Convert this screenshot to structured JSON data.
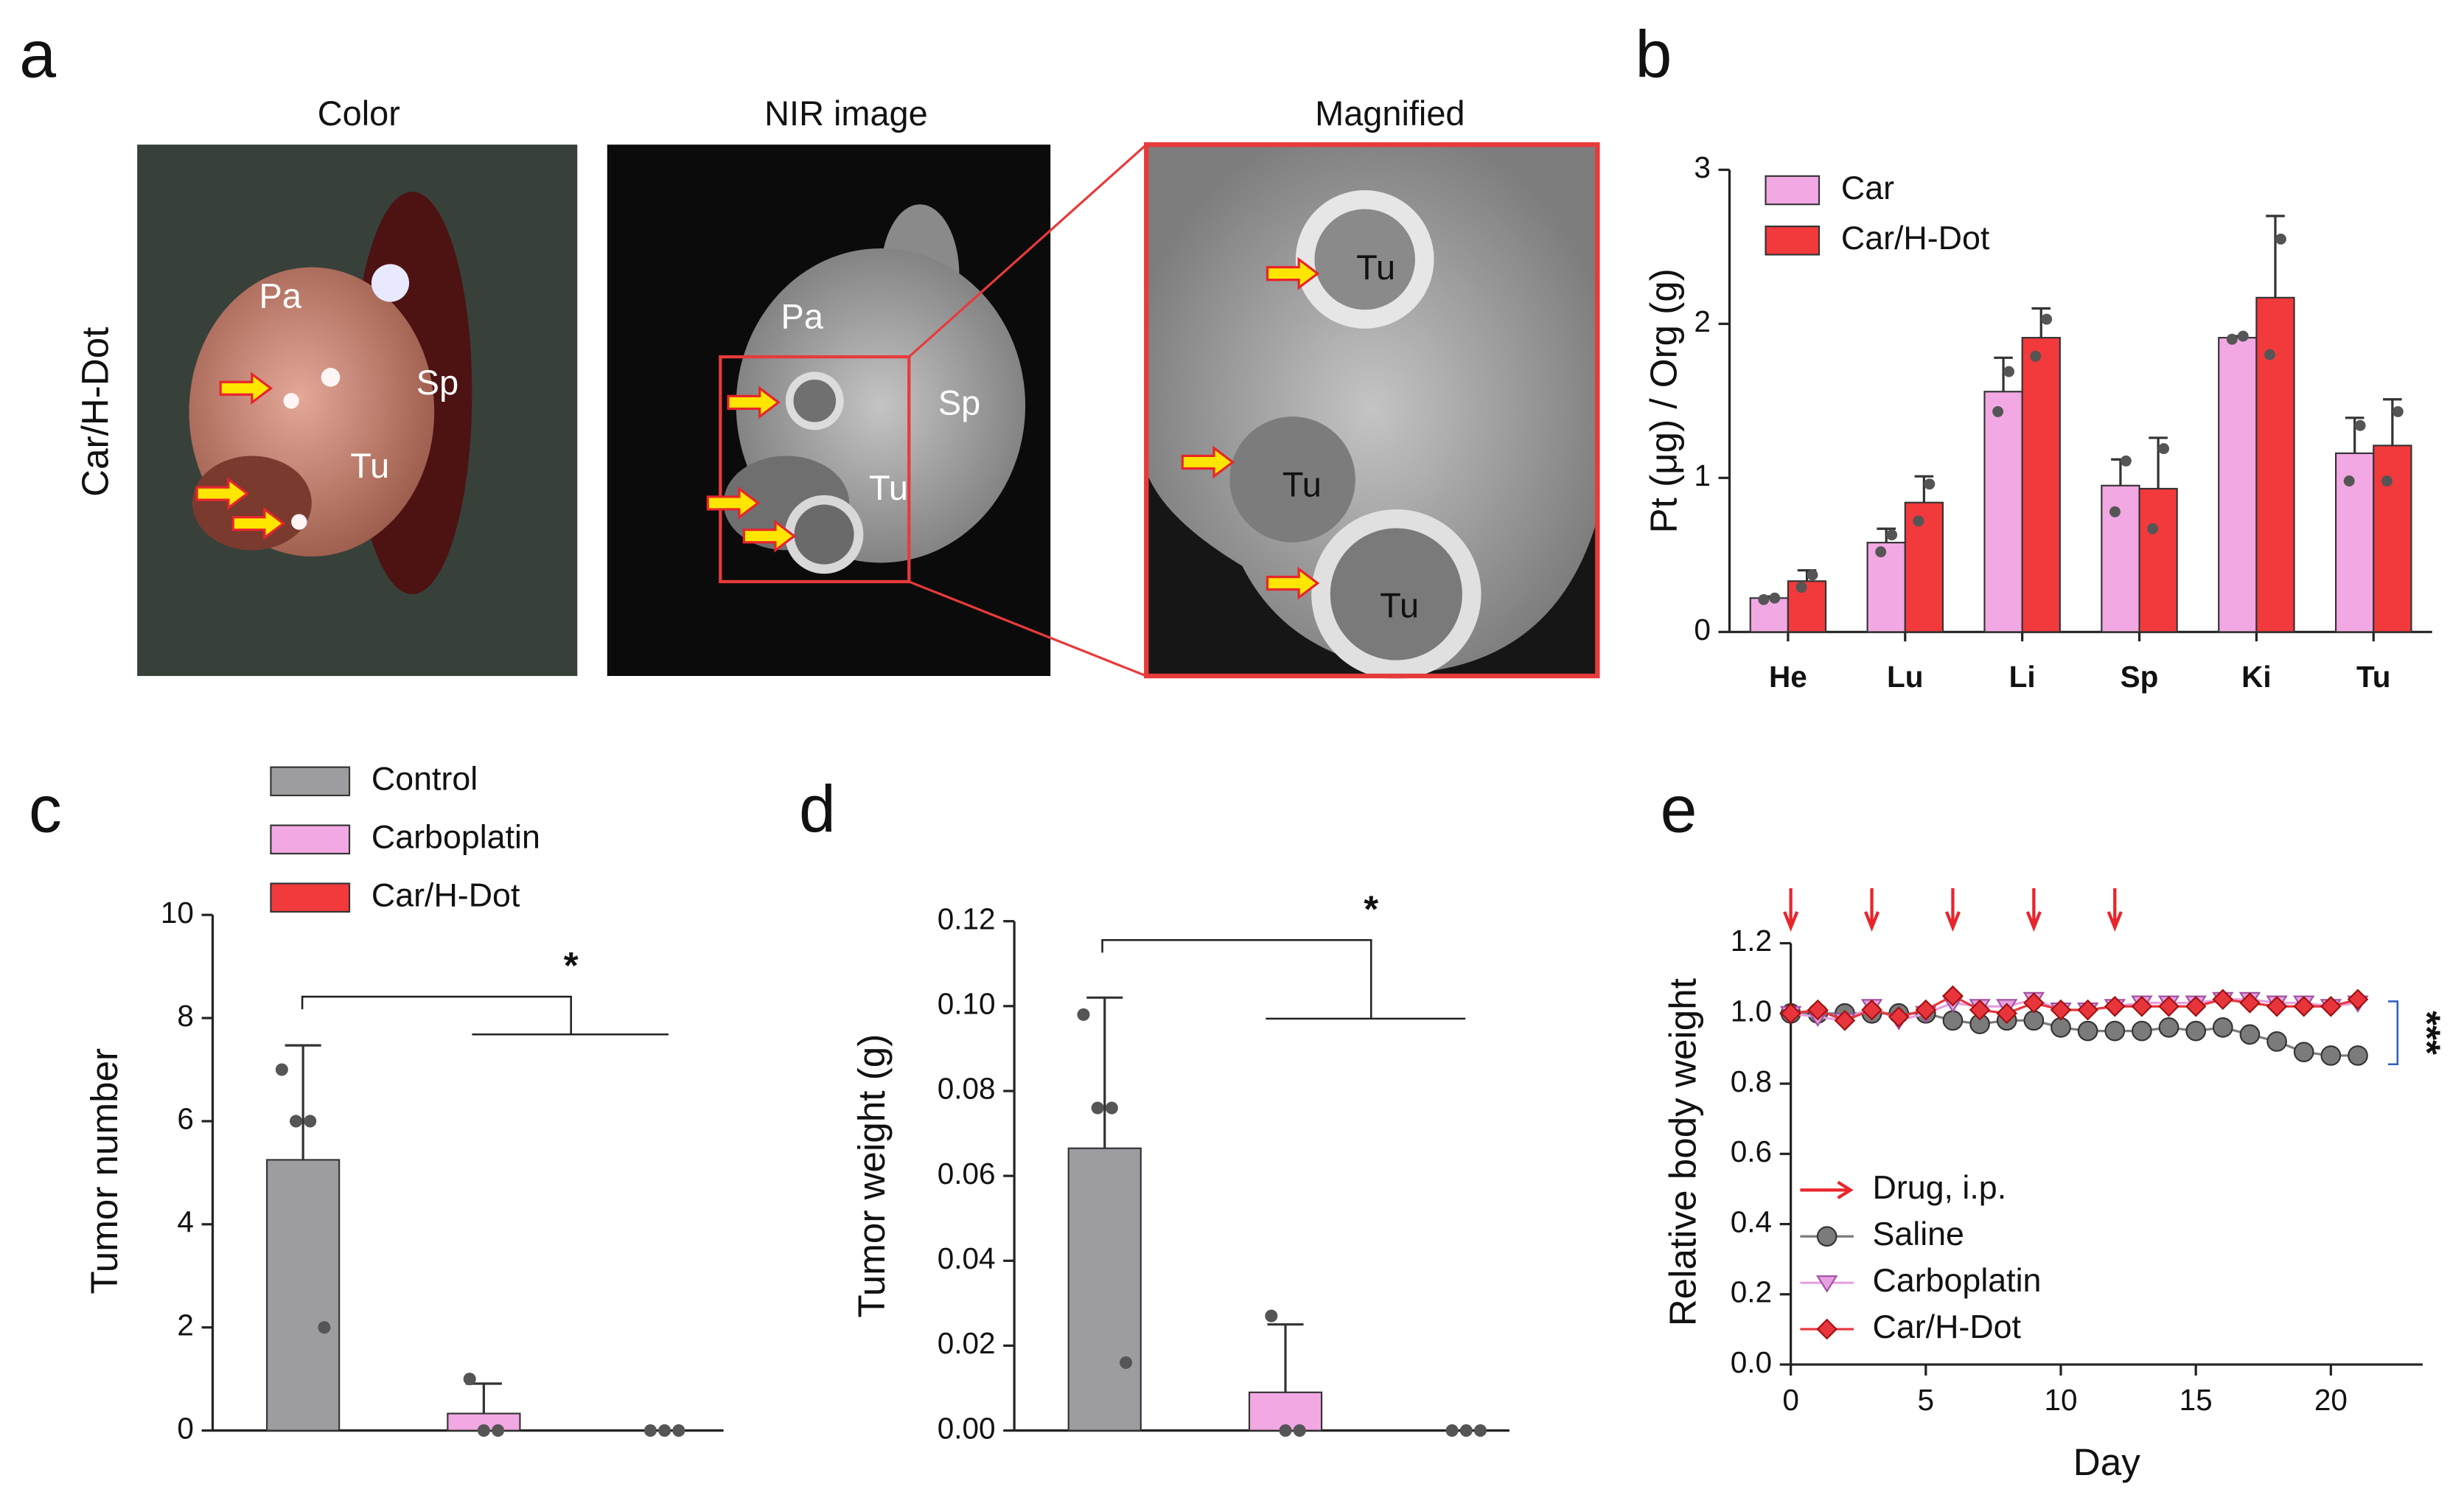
{
  "panel_a": {
    "label": "a",
    "row_label": "Car/H-Dot",
    "images": [
      {
        "title": "Color",
        "labels": [
          "Pa",
          "Sp",
          "Tu"
        ]
      },
      {
        "title": "NIR image",
        "labels": [
          "Pa",
          "Sp",
          "Tu"
        ]
      },
      {
        "title": "Magnified",
        "labels": [
          "Tu",
          "Tu",
          "Tu"
        ]
      }
    ]
  },
  "chart_data": [
    {
      "label": "b",
      "type": "bar",
      "ylabel": "Pt (μg) / Org (g)",
      "categories": [
        "He",
        "Lu",
        "Li",
        "Sp",
        "Ki",
        "Tu"
      ],
      "ylim": [
        0,
        3
      ],
      "yticks": [
        0,
        1,
        2,
        3
      ],
      "legend": "upper left",
      "series": [
        {
          "name": "Car",
          "color": "#f2a8e3",
          "values": [
            0.22,
            0.58,
            1.56,
            0.95,
            1.91,
            1.16
          ],
          "errors": [
            0.01,
            0.09,
            0.22,
            0.17,
            0.01,
            0.23
          ],
          "points": [
            [
              0.21,
              0.22
            ],
            [
              0.52,
              0.63
            ],
            [
              1.43,
              1.69
            ],
            [
              0.78,
              1.11
            ],
            [
              1.9,
              1.92
            ],
            [
              0.98,
              1.34
            ]
          ]
        },
        {
          "name": "Car/H-Dot",
          "color": "#f2393c",
          "values": [
            0.33,
            0.84,
            1.91,
            0.93,
            2.17,
            1.21
          ],
          "errors": [
            0.07,
            0.17,
            0.19,
            0.33,
            0.53,
            0.3
          ],
          "points": [
            [
              0.29,
              0.37
            ],
            [
              0.72,
              0.96
            ],
            [
              1.79,
              2.03
            ],
            [
              0.67,
              1.19
            ],
            [
              1.8,
              2.55
            ],
            [
              0.98,
              1.43
            ]
          ]
        }
      ]
    },
    {
      "label": "c",
      "type": "bar",
      "ylabel": "Tumor number",
      "ylim": [
        0,
        10
      ],
      "yticks": [
        0,
        2,
        4,
        6,
        8,
        10
      ],
      "annotation": "*",
      "legend": "upper left",
      "series": [
        {
          "name": "Control",
          "color": "#9d9ca1",
          "values": [
            5.25
          ],
          "errors": [
            2.22
          ],
          "points": [
            [
              7,
              6,
              6,
              2
            ]
          ]
        },
        {
          "name": "Carboplatin",
          "color": "#f2a8e3",
          "values": [
            0.33
          ],
          "errors": [
            0.58
          ],
          "points": [
            [
              1,
              0,
              0
            ]
          ]
        },
        {
          "name": "Car/H-Dot",
          "color": "#f2393c",
          "values": [
            0
          ],
          "points": [
            [
              0,
              0,
              0
            ]
          ]
        }
      ]
    },
    {
      "label": "d",
      "type": "bar",
      "ylabel": "Tumor weight (g)",
      "ylim": [
        0,
        0.12
      ],
      "yticks": [
        {
          "value": 0,
          "label": "0.00"
        },
        0.02,
        0.04,
        0.06,
        0.08,
        {
          "value": 0.1,
          "label": "0.10"
        },
        0.12
      ],
      "annotation": "*",
      "series": [
        {
          "color": "#9d9ca1",
          "values": [
            0.0665
          ],
          "errors": [
            0.0355
          ],
          "points": [
            [
              0.098,
              0.076,
              0.076,
              0.016
            ]
          ]
        },
        {
          "color": "#f2a8e3",
          "values": [
            0.009
          ],
          "errors": [
            0.016
          ],
          "points": [
            [
              0.027,
              0,
              0
            ]
          ]
        },
        {
          "color": "#f2393c",
          "values": [
            0
          ],
          "points": [
            [
              0,
              0,
              0
            ]
          ]
        }
      ]
    },
    {
      "label": "e",
      "type": "line",
      "xlabel": "Day",
      "ylabel": "Relative body weight",
      "x": [
        0,
        1,
        2,
        3,
        4,
        5,
        6,
        7,
        8,
        9,
        10,
        11,
        12,
        13,
        14,
        15,
        16,
        17,
        18,
        19,
        20,
        21
      ],
      "xlim": [
        0,
        23.4
      ],
      "xticks": [
        0,
        5,
        10,
        15,
        20
      ],
      "ylim": [
        0,
        1.2
      ],
      "yticks": [
        {
          "value": 0,
          "label": "0.0"
        },
        0.2,
        0.4,
        0.6,
        0.8,
        {
          "value": 1,
          "label": "1.0"
        },
        1.2
      ],
      "annotation": "***",
      "legend": "lower left",
      "drug_legend": "Drug, i.p.",
      "drug_color": "#e8252b",
      "drug_days": [
        0,
        3,
        6,
        9,
        12
      ],
      "series": [
        {
          "name": "Saline",
          "color": "#7b7b7b",
          "marker": "circle",
          "values": [
            1.0,
            1.0,
            1.0,
            1.0,
            1.0,
            1.0,
            0.98,
            0.97,
            0.98,
            0.98,
            0.96,
            0.95,
            0.95,
            0.95,
            0.96,
            0.95,
            0.96,
            0.94,
            0.92,
            0.89,
            0.88,
            0.88
          ]
        },
        {
          "name": "Carboplatin",
          "color": "#e6a0e0",
          "marker": "triangle",
          "values": [
            1.0,
            0.99,
            0.98,
            1.02,
            0.98,
            1.0,
            1.03,
            1.02,
            1.02,
            1.04,
            1.01,
            1.01,
            1.02,
            1.03,
            1.03,
            1.03,
            1.04,
            1.04,
            1.03,
            1.03,
            1.02,
            1.03
          ]
        },
        {
          "name": "Car/H-Dot",
          "color": "#e8353b",
          "marker": "diamond",
          "values": [
            1.0,
            1.01,
            0.98,
            1.01,
            0.99,
            1.01,
            1.05,
            1.01,
            1.0,
            1.03,
            1.01,
            1.01,
            1.02,
            1.02,
            1.02,
            1.02,
            1.04,
            1.03,
            1.02,
            1.02,
            1.02,
            1.04
          ]
        }
      ]
    }
  ]
}
